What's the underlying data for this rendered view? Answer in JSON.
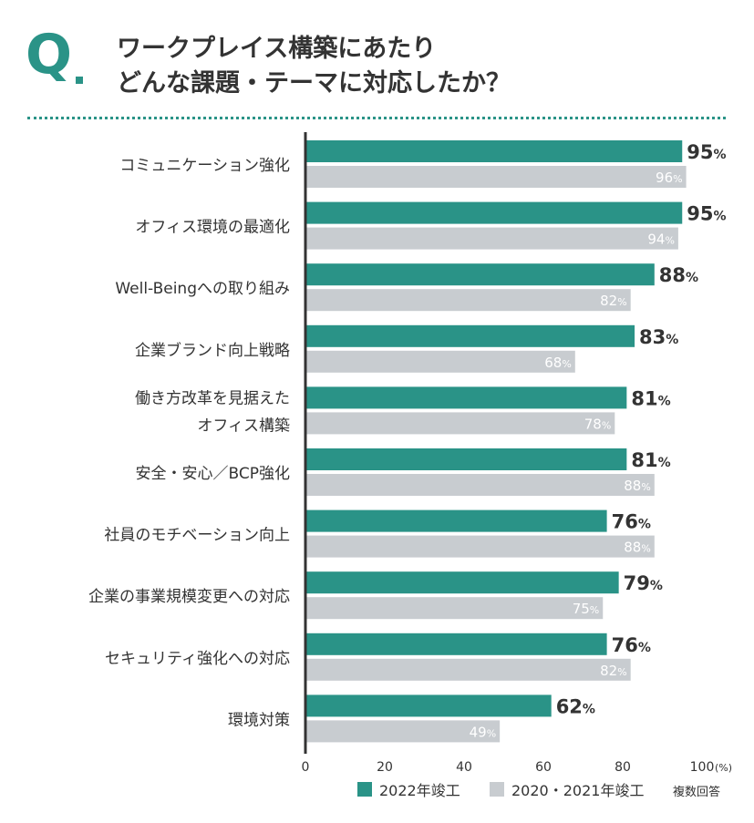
{
  "header": {
    "q_label": "Q",
    "title_line1": "ワークプレイス構築にあたり",
    "title_line2": "どんな課題・テーマに対応したか？"
  },
  "colors": {
    "primary": "#2a9387",
    "secondary": "#c8ccd0",
    "axis": "#333333"
  },
  "chart_data": {
    "type": "bar",
    "orientation": "horizontal",
    "categories": [
      [
        "コミュニケーション強化"
      ],
      [
        "オフィス環境の最適化"
      ],
      [
        "Well-Beingへの取り組み"
      ],
      [
        "企業ブランド向上戦略"
      ],
      [
        "働き方改革を見据えた",
        "オフィス構築"
      ],
      [
        "安全・安心／BCP強化"
      ],
      [
        "社員のモチベーション向上"
      ],
      [
        "企業の事業規模変更への対応"
      ],
      [
        "セキュリティ強化への対応"
      ],
      [
        "環境対策"
      ]
    ],
    "series": [
      {
        "name": "2022年竣工",
        "values": [
          95,
          95,
          88,
          83,
          81,
          81,
          76,
          79,
          76,
          62
        ]
      },
      {
        "name": "2020・2021年竣工",
        "values": [
          96,
          94,
          82,
          68,
          78,
          88,
          88,
          75,
          82,
          49
        ]
      }
    ],
    "value_suffix": "%",
    "xlim": [
      0,
      100
    ],
    "x_ticks": [
      0,
      20,
      40,
      60,
      80,
      100
    ],
    "x_unit_label": "(%)",
    "note": "複数回答",
    "legend_position": "bottom"
  }
}
